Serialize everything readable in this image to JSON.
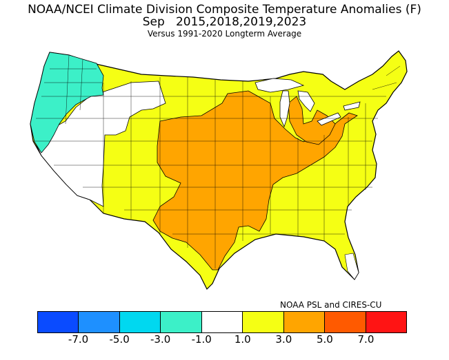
{
  "title": {
    "line1": "NOAA/NCEI Climate Division Composite Temperature Anomalies (F)",
    "line2": "Sep   2015,2018,2019,2023",
    "line3": "Versus 1991-2020 Longterm Average"
  },
  "credit": "NOAA PSL and CIRES-CU",
  "legend": {
    "colors": [
      "#0a4bff",
      "#1e90ff",
      "#00d8f0",
      "#3cf0c8",
      "#ffffff",
      "#f5ff14",
      "#ffa500",
      "#ff5a00",
      "#ff1414"
    ],
    "ticks": [
      "-7.0",
      "-5.0",
      "-3.0",
      "-1.0",
      "1.0",
      "3.0",
      "5.0",
      "7.0"
    ]
  },
  "map_regions": {
    "cool_pacific_northwest": "#3cf0c8",
    "near_normal_west": "#ffffff",
    "warm_1_to_3": "#f5ff14",
    "warm_3_to_5": "#ffa500",
    "water": "#ffffff"
  }
}
